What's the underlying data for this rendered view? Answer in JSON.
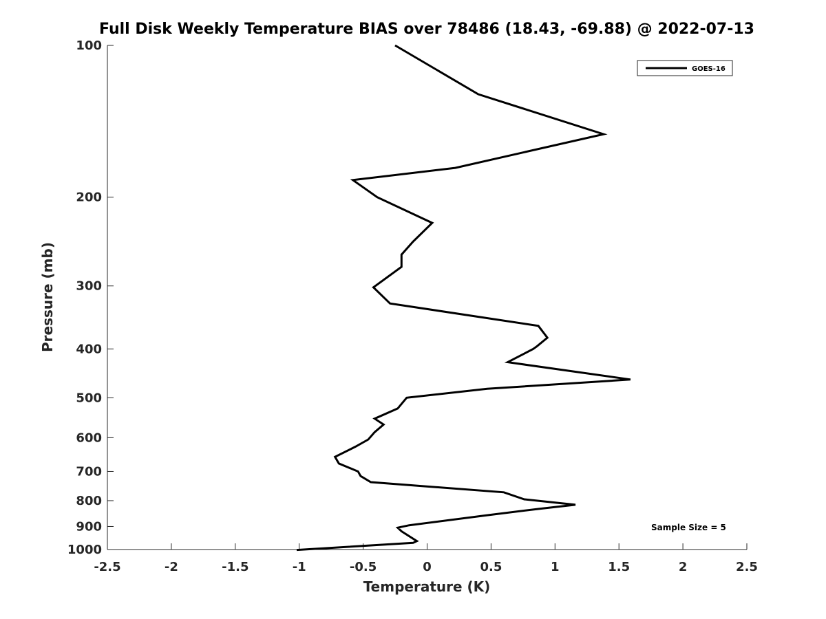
{
  "chart_data": {
    "type": "line",
    "title": "Full Disk Weekly Temperature BIAS over 78486 (18.43, -69.88) @ 2022-07-13",
    "xlabel": "Temperature (K)",
    "ylabel": "Pressure (mb)",
    "xlim": [
      -2.5,
      2.5
    ],
    "ylim": [
      100,
      1000
    ],
    "y_scale": "log",
    "y_reversed": true,
    "grid": false,
    "legend_position": "top-right",
    "x_ticks": [
      "-2.5",
      "-2",
      "-1.5",
      "-1",
      "-0.5",
      "0",
      "0.5",
      "1",
      "1.5",
      "2",
      "2.5"
    ],
    "y_ticks": [
      "100",
      "200",
      "300",
      "400",
      "500",
      "600",
      "700",
      "800",
      "900",
      "1000"
    ],
    "series": [
      {
        "name": "GOES-16",
        "color": "#000000",
        "x": [
          -0.25,
          0.4,
          1.38,
          0.22,
          -0.58,
          -0.39,
          0.04,
          -0.11,
          -0.2,
          -0.2,
          -0.42,
          -0.29,
          0.87,
          0.94,
          0.86,
          0.83,
          0.63,
          1.59,
          0.47,
          -0.16,
          -0.23,
          -0.41,
          -0.34,
          -0.41,
          -0.46,
          -0.56,
          -0.72,
          -0.69,
          -0.54,
          -0.52,
          -0.44,
          0.6,
          0.76,
          1.16,
          0.88,
          0.47,
          -0.14,
          -0.23,
          -0.2,
          -0.08,
          -0.11,
          -1.02
        ],
        "y": [
          100,
          125,
          150,
          175,
          185,
          200,
          225,
          245,
          260,
          275,
          302,
          325,
          360,
          380,
          395,
          400,
          425,
          460,
          480,
          500,
          525,
          550,
          565,
          585,
          605,
          625,
          655,
          675,
          700,
          715,
          735,
          770,
          795,
          815,
          830,
          855,
          895,
          905,
          920,
          962,
          970,
          1002
        ]
      }
    ],
    "annotation": "Sample Size = 5"
  }
}
